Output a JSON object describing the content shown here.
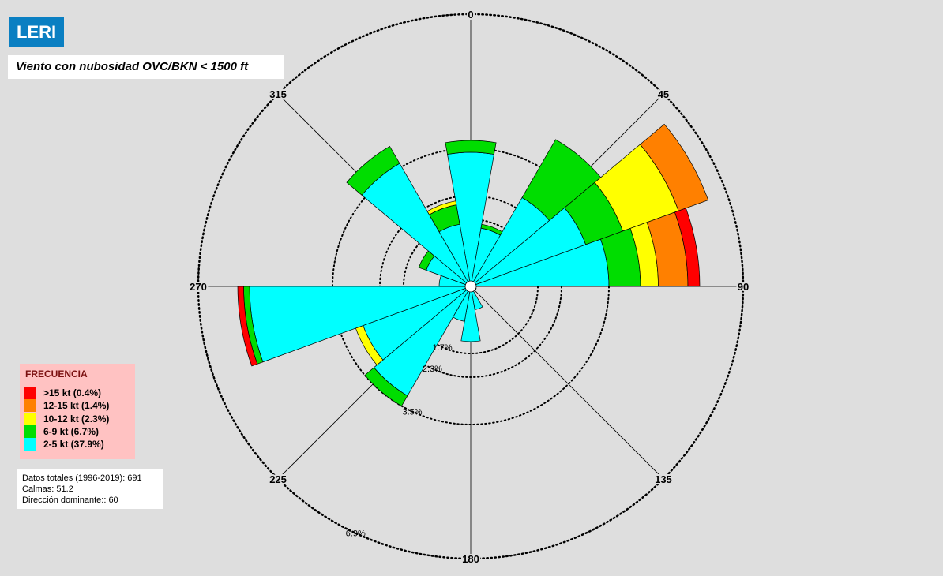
{
  "header": {
    "station": "LERI",
    "subtitle": "Viento con nubosidad OVC/BKN < 1500 ft"
  },
  "legend": {
    "title": "FRECUENCIA",
    "items": [
      {
        "label": ">15 kt (0.4%)",
        "color": "#ff0000"
      },
      {
        "label": "12-15 kt (1.4%)",
        "color": "#ff8000"
      },
      {
        "label": "10-12 kt (2.3%)",
        "color": "#ffff00"
      },
      {
        "label": "6-9 kt (6.7%)",
        "color": "#00dd00"
      },
      {
        "label": "2-5 kt (37.9%)",
        "color": "#00ffff"
      }
    ]
  },
  "info": {
    "total": "Datos totales (1996-2019):  691",
    "calms": "Calmas:  51.2",
    "dominant": "Dirección dominante::  60"
  },
  "chart_data": {
    "type": "polar-bar",
    "title": "Viento con nubosidad OVC/BKN < 1500 ft",
    "direction_unit": "degrees",
    "sector_width_deg": 20,
    "direction_labels": [
      "0",
      "45",
      "90",
      "135",
      "180",
      "225",
      "270",
      "315"
    ],
    "rings": [
      {
        "value": 1.7,
        "label": "1.7%"
      },
      {
        "value": 2.3,
        "label": "2.3%"
      },
      {
        "value": 3.5,
        "label": "3.5%"
      },
      {
        "value": 6.9,
        "label": "6.9%"
      }
    ],
    "ring_label_bearing_deg": 205,
    "radius_max": 6.9,
    "series": [
      "2-5 kt",
      "6-9 kt",
      "10-12 kt",
      "12-15 kt",
      ">15 kt"
    ],
    "series_colors": [
      "#00ffff",
      "#00dd00",
      "#ffff00",
      "#ff8000",
      "#ff0000"
    ],
    "sectors": [
      {
        "dir": 0,
        "values": [
          3.4,
          0.3,
          0,
          0,
          0
        ]
      },
      {
        "dir": 20,
        "values": [
          1.5,
          0.1,
          0,
          0,
          0
        ]
      },
      {
        "dir": 40,
        "values": [
          2.6,
          1.7,
          0,
          0,
          0
        ]
      },
      {
        "dir": 60,
        "values": [
          3.1,
          1.0,
          1.5,
          0.8,
          0
        ]
      },
      {
        "dir": 80,
        "values": [
          3.5,
          0.8,
          0.45,
          0.75,
          0.3
        ]
      },
      {
        "dir": 100,
        "values": [
          0.1,
          0,
          0,
          0,
          0
        ]
      },
      {
        "dir": 120,
        "values": [
          0.15,
          0,
          0,
          0,
          0
        ]
      },
      {
        "dir": 140,
        "values": [
          0.05,
          0,
          0,
          0,
          0
        ]
      },
      {
        "dir": 160,
        "values": [
          0.6,
          0,
          0,
          0,
          0
        ]
      },
      {
        "dir": 180,
        "values": [
          1.4,
          0,
          0,
          0,
          0
        ]
      },
      {
        "dir": 200,
        "values": [
          0.9,
          0,
          0,
          0,
          0
        ]
      },
      {
        "dir": 220,
        "values": [
          3.2,
          0.3,
          0,
          0,
          0
        ]
      },
      {
        "dir": 240,
        "values": [
          2.9,
          0,
          0.2,
          0,
          0
        ]
      },
      {
        "dir": 260,
        "values": [
          5.6,
          0.15,
          0,
          0,
          0.15
        ]
      },
      {
        "dir": 280,
        "values": [
          0.8,
          0,
          0,
          0,
          0
        ]
      },
      {
        "dir": 300,
        "values": [
          1.2,
          0.2,
          0,
          0,
          0
        ]
      },
      {
        "dir": 320,
        "values": [
          3.6,
          0.5,
          0,
          0,
          0
        ]
      },
      {
        "dir": 340,
        "values": [
          1.6,
          0.5,
          0.1,
          0,
          0
        ]
      }
    ]
  }
}
